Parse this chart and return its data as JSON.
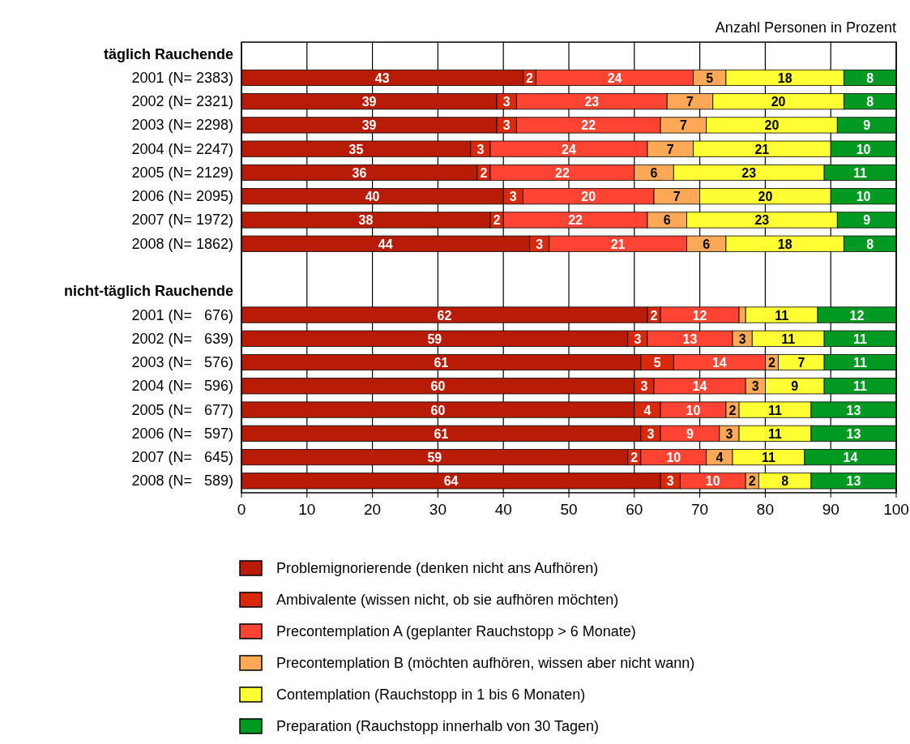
{
  "chart_data": {
    "type": "bar",
    "orientation": "horizontal",
    "stacked": true,
    "annotations": [
      "Anzahl Personen in Prozent"
    ],
    "categories": [
      "täglich Rauchende",
      "2001 (N= 2383)",
      "2002 (N= 2321)",
      "2003 (N= 2298)",
      "2004 (N= 2247)",
      "2005 (N= 2129)",
      "2006 (N= 2095)",
      "2007 (N= 1972)",
      "2008 (N= 1862)",
      null,
      "nicht-täglich Rauchende",
      "2001 (N=   676)",
      "2002 (N=   639)",
      "2003 (N=   576)",
      "2004 (N=   596)",
      "2005 (N=   677)",
      "2006 (N=   597)",
      "2007 (N=   645)",
      "2008 (N=   589)"
    ],
    "series": [
      {
        "name": "Problemignorierende (denken nicht ans Aufhören)",
        "color": "#b81c06",
        "values": [
          null,
          43,
          39,
          39,
          35,
          36,
          40,
          38,
          44,
          null,
          null,
          62,
          59,
          61,
          60,
          60,
          61,
          59,
          64
        ],
        "value_labels": [
          null,
          "43",
          "39",
          "39",
          "35",
          "36",
          "40",
          "38",
          "44",
          null,
          null,
          "62",
          "59",
          "61",
          "60",
          "60",
          "61",
          "59",
          "64"
        ]
      },
      {
        "name": "Ambivalente (wissen nicht, ob sie aufhören möchten)",
        "color": "#d9290c",
        "values": [
          null,
          2,
          3,
          3,
          3,
          2,
          3,
          2,
          3,
          null,
          null,
          2,
          3,
          5,
          3,
          4,
          3,
          2,
          3
        ],
        "value_labels": [
          null,
          "2",
          "3",
          "3",
          "3",
          "2",
          "3",
          "2",
          "3",
          null,
          null,
          "2",
          "3",
          "5",
          "3",
          "4",
          "3",
          "2",
          "3"
        ]
      },
      {
        "name": "Precontemplation A (geplanter Rauchstopp > 6 Monate)",
        "color": "#ff4433",
        "values": [
          null,
          24,
          23,
          22,
          24,
          22,
          20,
          22,
          21,
          null,
          null,
          12,
          13,
          14,
          14,
          10,
          9,
          10,
          10
        ],
        "value_labels": [
          null,
          "24",
          "23",
          "22",
          "24",
          "22",
          "20",
          "22",
          "21",
          null,
          null,
          "12",
          "13",
          "14",
          "14",
          "10",
          "9",
          "10",
          "10"
        ]
      },
      {
        "name": "Precontemplation B (möchten aufhören, wissen aber nicht wann)",
        "color": "#ffa858",
        "values": [
          null,
          5,
          7,
          7,
          7,
          6,
          7,
          6,
          6,
          null,
          null,
          1,
          3,
          2,
          3,
          2,
          3,
          4,
          2
        ],
        "value_labels": [
          null,
          "5",
          "7",
          "7",
          "7",
          "6",
          "7",
          "6",
          "6",
          null,
          null,
          null,
          "3",
          "2",
          "3",
          "2",
          "3",
          "4",
          "2"
        ]
      },
      {
        "name": "Contemplation (Rauchstopp in 1 bis 6 Monaten)",
        "color": "#ffff33",
        "values": [
          null,
          18,
          20,
          20,
          21,
          23,
          20,
          23,
          18,
          null,
          null,
          11,
          11,
          7,
          9,
          11,
          11,
          11,
          8
        ],
        "value_labels": [
          null,
          "18",
          "20",
          "20",
          "21",
          "23",
          "20",
          "23",
          "18",
          null,
          null,
          "11",
          "11",
          "7",
          "9",
          "11",
          "11",
          "11",
          "8"
        ]
      },
      {
        "name": "Preparation (Rauchstopp innerhalb von 30 Tagen)",
        "color": "#009a22",
        "values": [
          null,
          8,
          8,
          9,
          10,
          11,
          10,
          9,
          8,
          null,
          null,
          12,
          11,
          11,
          11,
          13,
          13,
          14,
          13
        ],
        "value_labels": [
          null,
          "8",
          "8",
          "9",
          "10",
          "11",
          "10",
          "9",
          "8",
          null,
          null,
          "12",
          "11",
          "11",
          "11",
          "13",
          "13",
          "14",
          "13"
        ]
      }
    ],
    "xlim": [
      0,
      100
    ],
    "xticks": [
      0,
      10,
      20,
      30,
      40,
      50,
      60,
      70,
      80,
      90,
      100
    ],
    "grid": "x",
    "legend": "bottom"
  }
}
